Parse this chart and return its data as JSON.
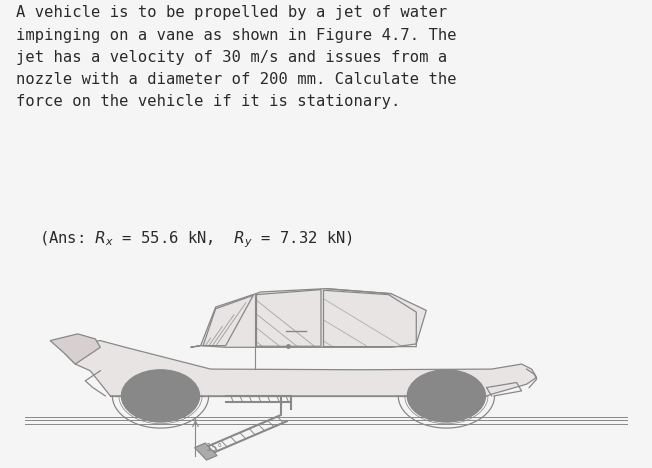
{
  "bg_color": "#f5f5f5",
  "text_color": "#2a2a2a",
  "car_outline": "#888888",
  "car_fill": "#e8e4e4",
  "wheel_fill": "#d8d0d0",
  "nozzle_color": "#999999",
  "fig_width": 6.52,
  "fig_height": 4.68,
  "dpi": 100,
  "text_lines": [
    "A vehicle is to be propelled by a jet of water",
    "impinging on a vane as shown in Figure 4.7. The",
    "jet has a velocity of 30 m/s and issues from a",
    "nozzle with a diameter of 200 mm. Calculate the",
    "force on the vehicle if it is stationary."
  ],
  "ans_prefix": "(Ans: ",
  "ans_rx": "R",
  "ans_rx_sub": "x",
  "ans_rx_val": " = 55.6 kN, ",
  "ans_ry": "R",
  "ans_ry_sub": "y",
  "ans_ry_val": " = 7.32 kN)"
}
